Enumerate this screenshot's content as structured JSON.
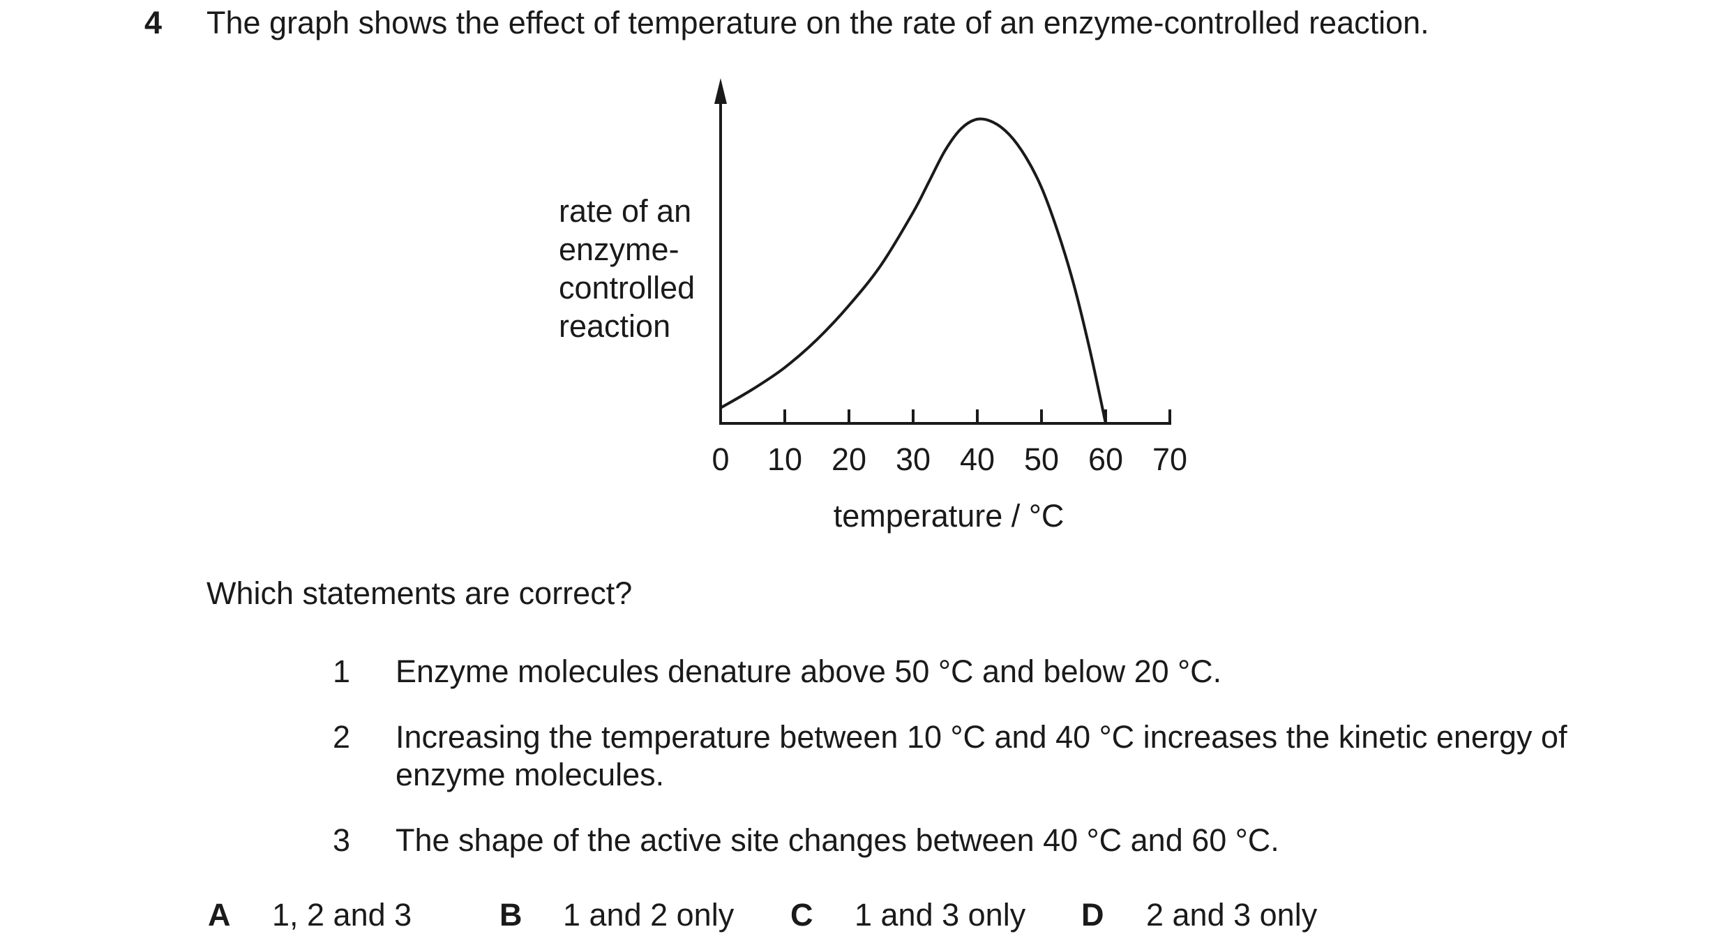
{
  "question": {
    "number": "4",
    "stem": "The graph shows the effect of temperature on the rate of an enzyme-controlled reaction.",
    "prompt": "Which statements are correct?",
    "statements": [
      {
        "number": "1",
        "lines": [
          "Enzyme molecules denature above 50 °C and below 20 °C."
        ]
      },
      {
        "number": "2",
        "lines": [
          "Increasing the temperature between 10 °C and 40 °C increases the kinetic energy of",
          "enzyme molecules."
        ]
      },
      {
        "number": "3",
        "lines": [
          "The shape of the active site changes between 40 °C and 60 °C."
        ]
      }
    ],
    "options": [
      {
        "letter": "A",
        "text": "1, 2 and 3"
      },
      {
        "letter": "B",
        "text": "1 and 2 only"
      },
      {
        "letter": "C",
        "text": "1 and 3 only"
      },
      {
        "letter": "D",
        "text": "2 and 3 only"
      }
    ]
  },
  "chart_data": {
    "type": "line",
    "title": "",
    "xlabel": "temperature / °C",
    "ylabel_lines": [
      "rate of an",
      "enzyme-",
      "controlled",
      "reaction"
    ],
    "x_ticks": [
      0,
      10,
      20,
      30,
      40,
      50,
      60,
      70
    ],
    "xlim": [
      0,
      70
    ],
    "ylim": [
      0,
      1
    ],
    "y_axis_numeric_labels": false,
    "grid": false,
    "series": [
      {
        "x": [
          0,
          5,
          10,
          15,
          20,
          25,
          30,
          32.5,
          35,
          37.5,
          40,
          42.5,
          45,
          47.5,
          50,
          52.5,
          55,
          57.5,
          60
        ],
        "y": [
          0.05,
          0.11,
          0.18,
          0.27,
          0.38,
          0.51,
          0.68,
          0.78,
          0.88,
          0.95,
          0.98,
          0.97,
          0.93,
          0.86,
          0.76,
          0.62,
          0.45,
          0.24,
          0.0
        ]
      }
    ]
  }
}
